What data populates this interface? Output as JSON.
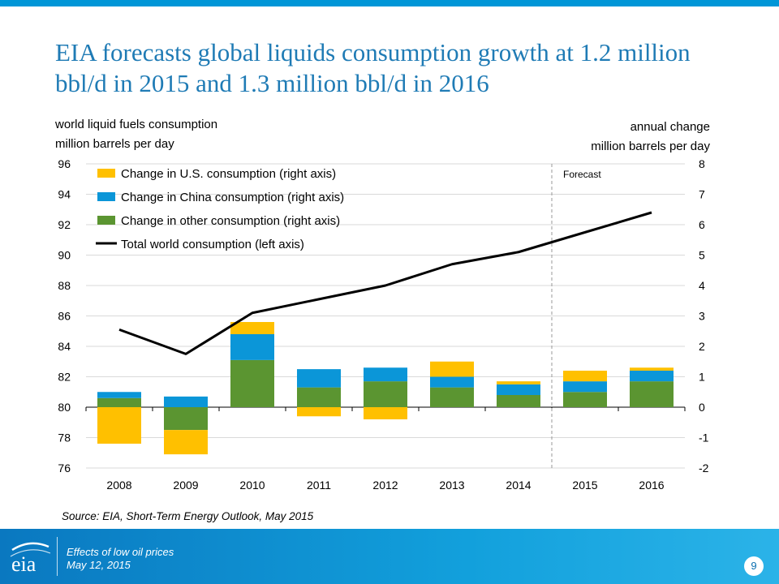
{
  "title": "EIA forecasts global liquids consumption growth at 1.2 million bbl/d in 2015 and 1.3 million bbl/d in 2016",
  "left_axis_title": [
    "world liquid fuels consumption",
    "million barrels per day"
  ],
  "right_axis_title": [
    "annual change",
    "million barrels per day"
  ],
  "forecast_label": "Forecast",
  "source": "Source: EIA, Short-Term Energy Outlook, May 2015",
  "footer": {
    "line1": "Effects of low oil prices",
    "line2": "May 12, 2015",
    "page": "9",
    "logo_text": "eia"
  },
  "colors": {
    "us": "#ffc000",
    "china": "#0b96d8",
    "other": "#5b9531",
    "total": "#000000",
    "accent": "#1f7bb5"
  },
  "chart_data": {
    "type": "bar",
    "categories": [
      "2008",
      "2009",
      "2010",
      "2011",
      "2012",
      "2013",
      "2014",
      "2015",
      "2016"
    ],
    "series": [
      {
        "name": "Change in U.S. consumption (right axis)",
        "type": "bar",
        "axis": "right",
        "color": "#ffc000",
        "values": [
          -1.2,
          -0.8,
          0.4,
          -0.3,
          -0.4,
          0.5,
          0.1,
          0.35,
          0.1
        ]
      },
      {
        "name": "Change in China consumption (right axis)",
        "type": "bar",
        "axis": "right",
        "color": "#0b96d8",
        "values": [
          0.2,
          0.35,
          0.85,
          0.6,
          0.45,
          0.35,
          0.35,
          0.35,
          0.35
        ]
      },
      {
        "name": "Change in other consumption (right axis)",
        "type": "bar",
        "axis": "right",
        "color": "#5b9531",
        "values": [
          0.3,
          -0.75,
          1.55,
          0.65,
          0.85,
          0.65,
          0.4,
          0.5,
          0.85
        ]
      },
      {
        "name": "Total world consumption (left axis)",
        "type": "line",
        "axis": "left",
        "color": "#000000",
        "values": [
          85.1,
          83.5,
          86.2,
          87.1,
          88.0,
          89.4,
          90.2,
          91.5,
          92.8
        ]
      }
    ],
    "left_axis": {
      "range": [
        76,
        96
      ],
      "ticks": [
        "76",
        "78",
        "80",
        "82",
        "84",
        "86",
        "88",
        "90",
        "92",
        "94",
        "96"
      ]
    },
    "right_axis": {
      "range": [
        -2,
        8
      ],
      "ticks": [
        "-2",
        "-1",
        "0",
        "1",
        "2",
        "3",
        "4",
        "5",
        "6",
        "7",
        "8"
      ]
    },
    "forecast_start": "2015",
    "grid": true,
    "legend_position": "top-left"
  }
}
